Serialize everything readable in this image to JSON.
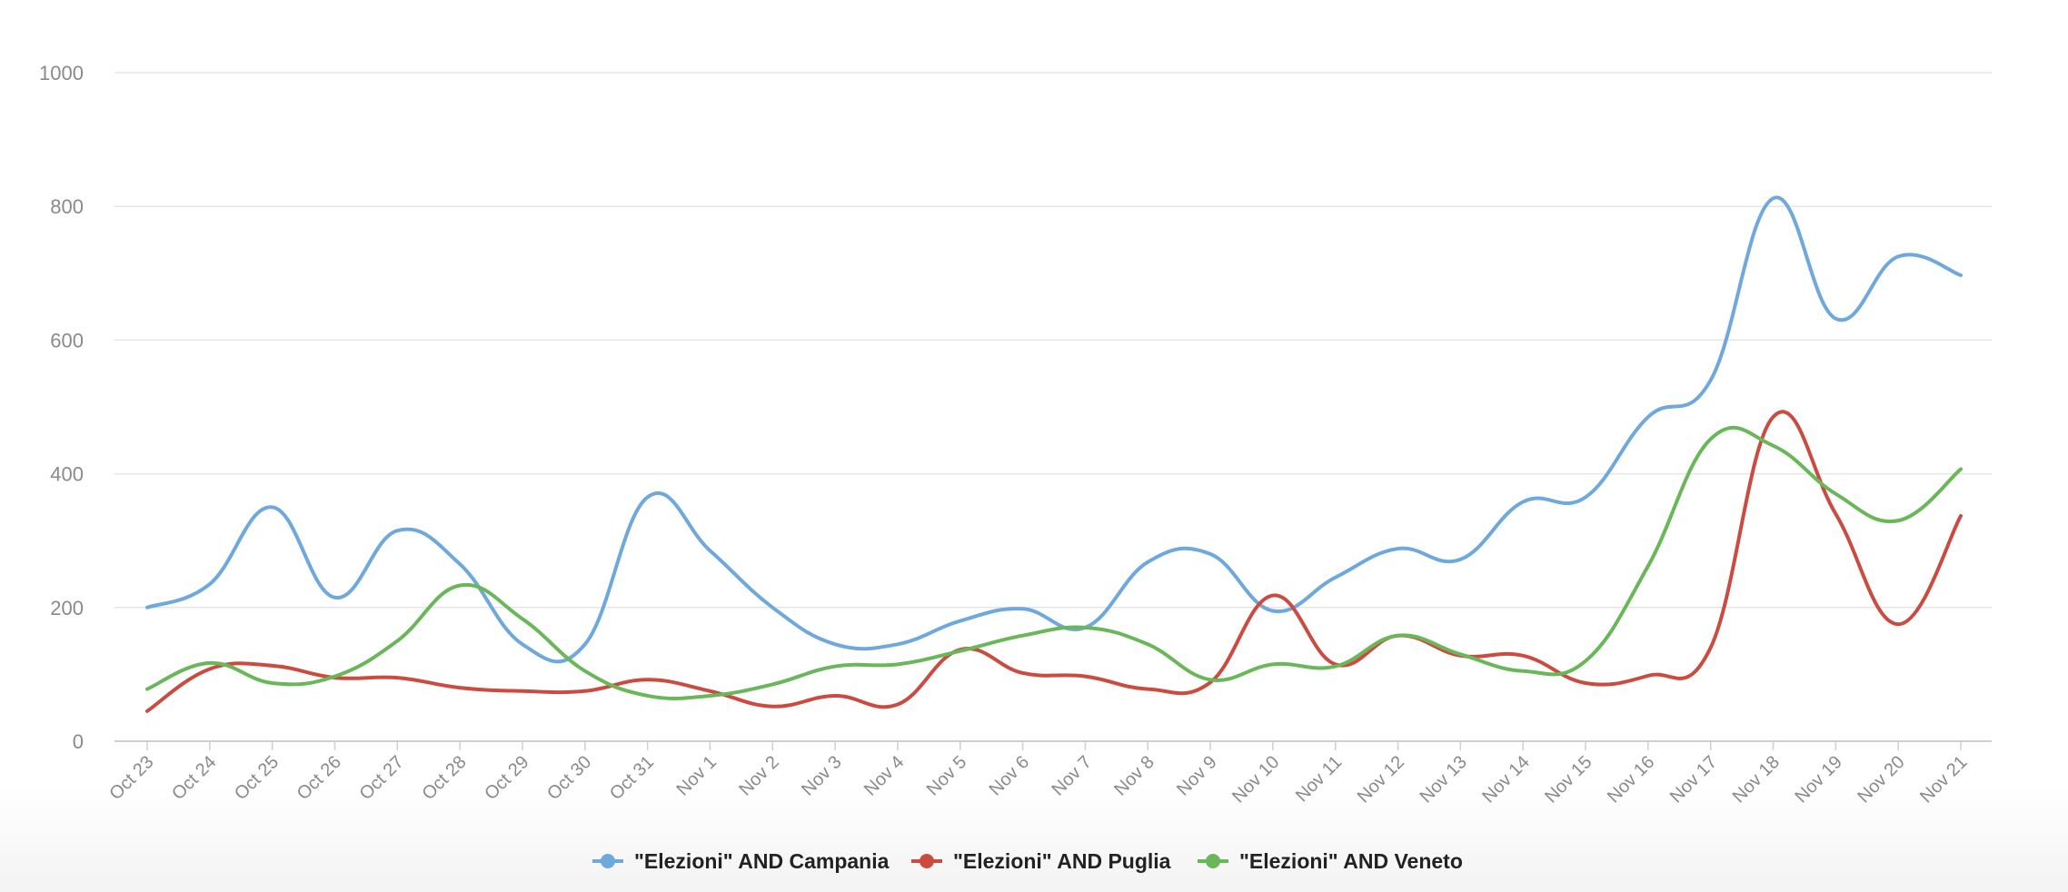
{
  "chart_data": {
    "type": "line",
    "title": "",
    "xlabel": "",
    "ylabel": "",
    "ylim": [
      0,
      1000
    ],
    "yticks": [
      0,
      200,
      400,
      600,
      800,
      1000
    ],
    "grid": "horizontal",
    "legend": "bottom-center",
    "categories": [
      "Oct 23",
      "Oct 24",
      "Oct 25",
      "Oct 26",
      "Oct 27",
      "Oct 28",
      "Oct 29",
      "Oct 30",
      "Oct 31",
      "Nov 1",
      "Nov 2",
      "Nov 3",
      "Nov 4",
      "Nov 5",
      "Nov 6",
      "Nov 7",
      "Nov 8",
      "Nov 9",
      "Nov 10",
      "Nov 11",
      "Nov 12",
      "Nov 13",
      "Nov 14",
      "Nov 15",
      "Nov 16",
      "Nov 17",
      "Nov 18",
      "Nov 19",
      "Nov 20",
      "Nov 21"
    ],
    "series": [
      {
        "name": "\"Elezioni\" AND Campania",
        "color": "#6fa8dc",
        "values": [
          200,
          235,
          350,
          215,
          315,
          265,
          145,
          145,
          365,
          285,
          200,
          145,
          145,
          180,
          198,
          170,
          268,
          280,
          195,
          245,
          288,
          272,
          358,
          365,
          485,
          540,
          812,
          632,
          725,
          697
        ]
      },
      {
        "name": "\"Elezioni\" AND Puglia",
        "color": "#cc4b40",
        "values": [
          45,
          108,
          113,
          95,
          95,
          80,
          75,
          75,
          92,
          75,
          52,
          68,
          55,
          137,
          102,
          97,
          78,
          88,
          218,
          115,
          158,
          128,
          128,
          87,
          98,
          140,
          485,
          340,
          175,
          337
        ]
      },
      {
        "name": "\"Elezioni\" AND Veneto",
        "color": "#6ab75a",
        "values": [
          78,
          117,
          87,
          97,
          150,
          233,
          183,
          105,
          68,
          68,
          85,
          112,
          115,
          135,
          158,
          170,
          145,
          92,
          115,
          112,
          158,
          130,
          105,
          120,
          262,
          452,
          442,
          370,
          330,
          407
        ]
      }
    ]
  }
}
